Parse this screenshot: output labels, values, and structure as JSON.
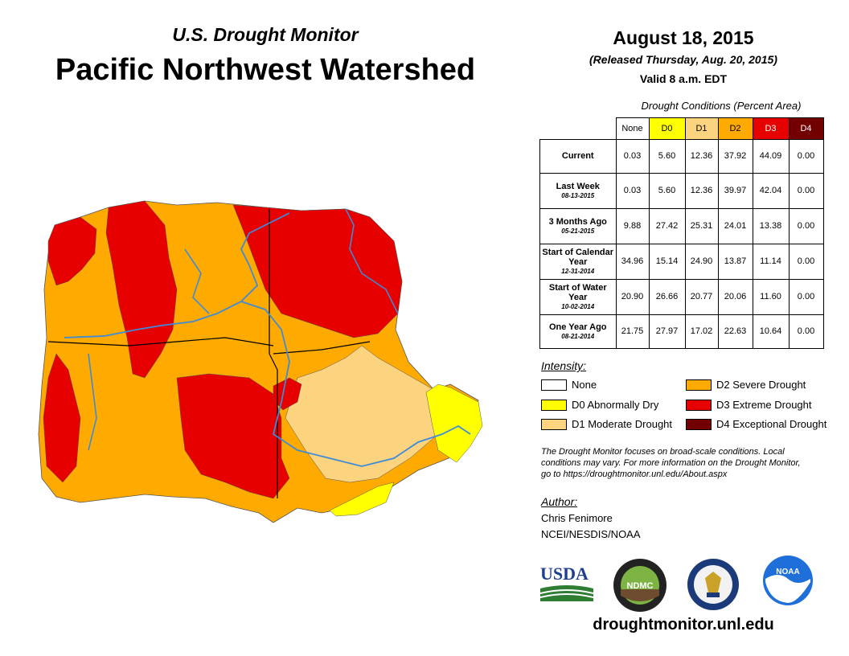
{
  "header": {
    "subtitle": "U.S. Drought Monitor",
    "title": "Pacific Northwest Watershed",
    "date": "August 18, 2015",
    "released": "(Released Thursday, Aug. 20, 2015)",
    "valid": "Valid 8 a.m. EDT"
  },
  "table": {
    "caption": "Drought Conditions (Percent Area)",
    "columns": [
      {
        "label": "None",
        "color": "#ffffff"
      },
      {
        "label": "D0",
        "color": "#ffff00"
      },
      {
        "label": "D1",
        "color": "#fcd37f"
      },
      {
        "label": "D2",
        "color": "#ffaa00"
      },
      {
        "label": "D3",
        "color": "#e60000"
      },
      {
        "label": "D4",
        "color": "#730000"
      }
    ],
    "rows": [
      {
        "label": "Current",
        "date": "",
        "values": [
          "0.03",
          "5.60",
          "12.36",
          "37.92",
          "44.09",
          "0.00"
        ]
      },
      {
        "label": "Last Week",
        "date": "08-13-2015",
        "values": [
          "0.03",
          "5.60",
          "12.36",
          "39.97",
          "42.04",
          "0.00"
        ]
      },
      {
        "label": "3 Months Ago",
        "date": "05-21-2015",
        "values": [
          "9.88",
          "27.42",
          "25.31",
          "24.01",
          "13.38",
          "0.00"
        ]
      },
      {
        "label": "Start of Calendar Year",
        "date": "12-31-2014",
        "values": [
          "34.96",
          "15.14",
          "24.90",
          "13.87",
          "11.14",
          "0.00"
        ]
      },
      {
        "label": "Start of Water Year",
        "date": "10-02-2014",
        "values": [
          "20.90",
          "26.66",
          "20.77",
          "20.06",
          "11.60",
          "0.00"
        ]
      },
      {
        "label": "One Year Ago",
        "date": "08-21-2014",
        "values": [
          "21.75",
          "27.97",
          "17.02",
          "22.63",
          "10.64",
          "0.00"
        ]
      }
    ]
  },
  "legend": {
    "heading": "Intensity:",
    "items": [
      {
        "label": "None",
        "color": "#ffffff"
      },
      {
        "label": "D0 Abnormally Dry",
        "color": "#ffff00"
      },
      {
        "label": "D1 Moderate Drought",
        "color": "#fcd37f"
      },
      {
        "label": "D2 Severe Drought",
        "color": "#ffaa00"
      },
      {
        "label": "D3 Extreme Drought",
        "color": "#e60000"
      },
      {
        "label": "D4 Exceptional Drought",
        "color": "#730000"
      }
    ]
  },
  "note": "The Drought Monitor focuses on broad-scale conditions. Local conditions may vary. For more information on the Drought Monitor, go to https://droughtmonitor.unl.edu/About.aspx",
  "author": {
    "heading": "Author:",
    "name": "Chris Fenimore",
    "org": "NCEI/NESDIS/NOAA"
  },
  "logos": {
    "usda": "USDA",
    "ndmc": "NDMC",
    "noaa": "NOAA"
  },
  "url": "droughtmonitor.unl.edu",
  "colors": {
    "none": "#ffffff",
    "d0": "#ffff00",
    "d1": "#fcd37f",
    "d2": "#ffaa00",
    "d3": "#e60000",
    "d4": "#730000",
    "river": "#3d8bd9",
    "usda_blue": "#1f3f8f",
    "usda_green": "#2e7d32"
  }
}
